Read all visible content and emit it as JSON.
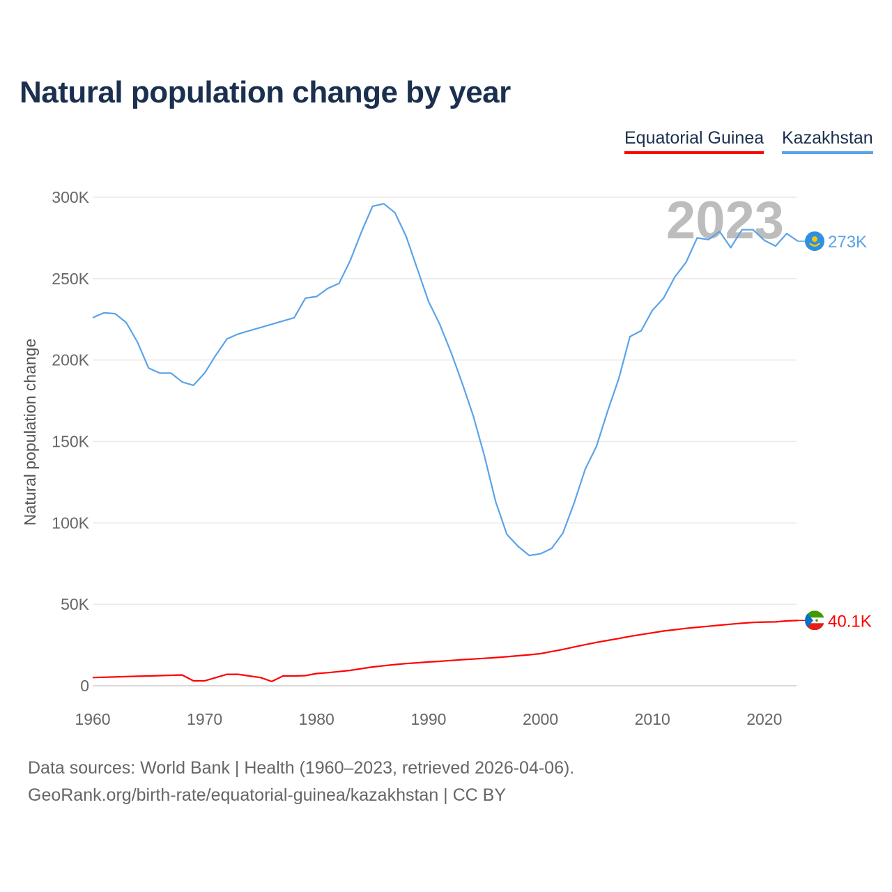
{
  "title": "Natural population change by year",
  "legend": [
    {
      "name": "Equatorial Guinea",
      "color": "#ff0000"
    },
    {
      "name": "Kazakhstan",
      "color": "#5ba3e8"
    }
  ],
  "footer": {
    "line1": "Data sources: World Bank | Health (1960–2023, retrieved 2026-04-06).",
    "line2": "GeoRank.org/birth-rate/equatorial-guinea/kazakhstan | CC BY"
  },
  "chart_data": {
    "type": "line",
    "title": "Natural population change by year",
    "xlabel": "",
    "ylabel": "Natural population change",
    "xlim": [
      1960,
      2023
    ],
    "ylim": [
      0,
      300000
    ],
    "x_ticks": [
      1960,
      1970,
      1980,
      1990,
      2000,
      2010,
      2020
    ],
    "y_ticks": [
      0,
      50000,
      100000,
      150000,
      200000,
      250000,
      300000
    ],
    "y_tick_labels": [
      "0",
      "50K",
      "100K",
      "150K",
      "200K",
      "250K",
      "300K"
    ],
    "grid": true,
    "year_watermark": "2023",
    "legend_position": "top-right",
    "series": [
      {
        "name": "Kazakhstan",
        "color": "#5ba3e8",
        "end_label": "273K",
        "flag": "kazakhstan-flag",
        "x_start": 1960,
        "values": [
          226000,
          229000,
          228500,
          223000,
          211000,
          195000,
          192000,
          192000,
          186500,
          184500,
          192000,
          203000,
          213000,
          216000,
          218000,
          220000,
          222000,
          224000,
          226000,
          238000,
          239000,
          244000,
          247000,
          261000,
          278500,
          294400,
          296000,
          290500,
          276000,
          256000,
          236000,
          222000,
          205000,
          186000,
          165600,
          141000,
          113000,
          93000,
          85600,
          80000,
          81000,
          84300,
          93700,
          112000,
          133000,
          147000,
          168600,
          188700,
          214400,
          218000,
          230600,
          238000,
          251000,
          260000,
          275000,
          274000,
          279000,
          269000,
          280000,
          280000,
          273500,
          270000,
          277700,
          273000
        ]
      },
      {
        "name": "Equatorial Guinea",
        "color": "#ff0000",
        "end_label": "40.1K",
        "flag": "equatorial-guinea-flag",
        "x_start": 1960,
        "values": [
          5000,
          5200,
          5400,
          5600,
          5800,
          6000,
          6200,
          6400,
          6600,
          3000,
          3000,
          5000,
          7000,
          7000,
          6000,
          5000,
          2600,
          6000,
          6000,
          6200,
          7500,
          8000,
          8700,
          9400,
          10500,
          11500,
          12300,
          13000,
          13600,
          14100,
          14600,
          15000,
          15500,
          16000,
          16400,
          16800,
          17300,
          17800,
          18400,
          19000,
          19700,
          21000,
          22300,
          23800,
          25200,
          26600,
          27800,
          29000,
          30300,
          31400,
          32500,
          33600,
          34400,
          35200,
          35900,
          36500,
          37200,
          37800,
          38400,
          38900,
          39100,
          39200,
          39800,
          40100
        ]
      }
    ]
  }
}
